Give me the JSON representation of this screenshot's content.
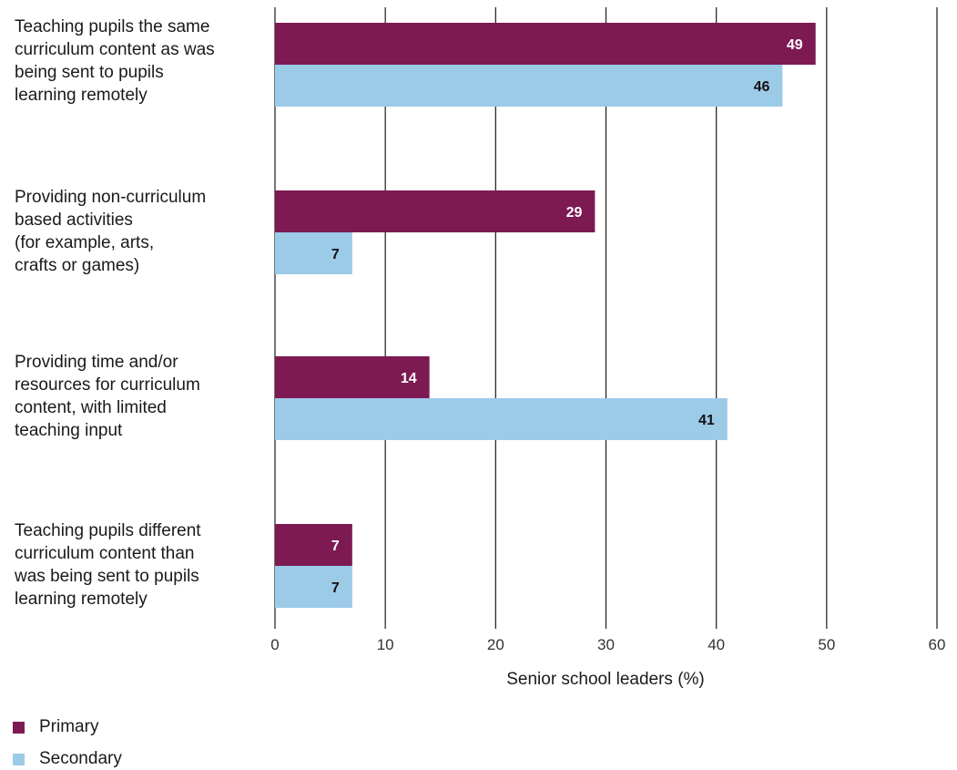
{
  "chart_data": {
    "type": "bar",
    "orientation": "horizontal",
    "categories": [
      "Teaching pupils the same\ncurriculum content as was\nbeing sent to pupils\nlearning remotely",
      "Providing non-curriculum\nbased activities\n(for example, arts,\ncrafts or games)",
      "Providing time and/or\nresources for curriculum\ncontent, with limited\nteaching input",
      "Teaching pupils different\ncurriculum content than\nwas being sent to pupils\nlearning remotely"
    ],
    "series": [
      {
        "name": "Primary",
        "values": [
          49,
          29,
          14,
          7
        ],
        "color": "#7d1953",
        "label_color": "#ffffff"
      },
      {
        "name": "Secondary",
        "values": [
          46,
          7,
          41,
          7
        ],
        "color": "#9ccbe8",
        "label_color": "#111111"
      }
    ],
    "xlabel": "Senior school leaders (%)",
    "xlim": [
      0,
      60
    ],
    "xticks": [
      0,
      10,
      20,
      30,
      40,
      50,
      60
    ],
    "grid": "vertical",
    "legend_position": "bottom-left"
  }
}
